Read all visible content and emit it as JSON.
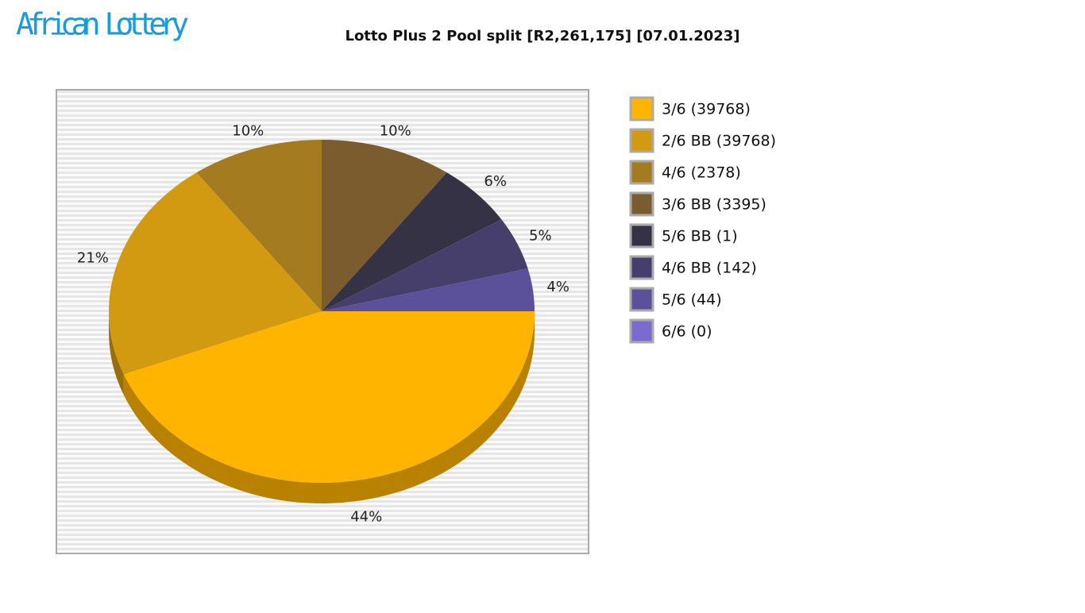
{
  "logo": "African Lottery",
  "chart_data": {
    "type": "pie",
    "title": "Lotto Plus 2 Pool split [R2,261,175] [07.01.2023]",
    "categories": [
      "3/6 (39768)",
      "2/6 BB (39768)",
      "4/6 (2378)",
      "3/6 BB (3395)",
      "5/6 BB (1)",
      "4/6 BB (142)",
      "5/6 (44)",
      "6/6 (0)"
    ],
    "values": [
      44,
      21,
      10,
      10,
      6,
      5,
      4,
      0
    ],
    "value_labels": [
      "44%",
      "21%",
      "10%",
      "10%",
      "6%",
      "5%",
      "4%",
      null
    ],
    "colors": [
      "#ffb400",
      "#d29a10",
      "#a57b1f",
      "#7a5c2e",
      "#363246",
      "#463f6b",
      "#5a519a",
      "#7a6ccf"
    ]
  }
}
